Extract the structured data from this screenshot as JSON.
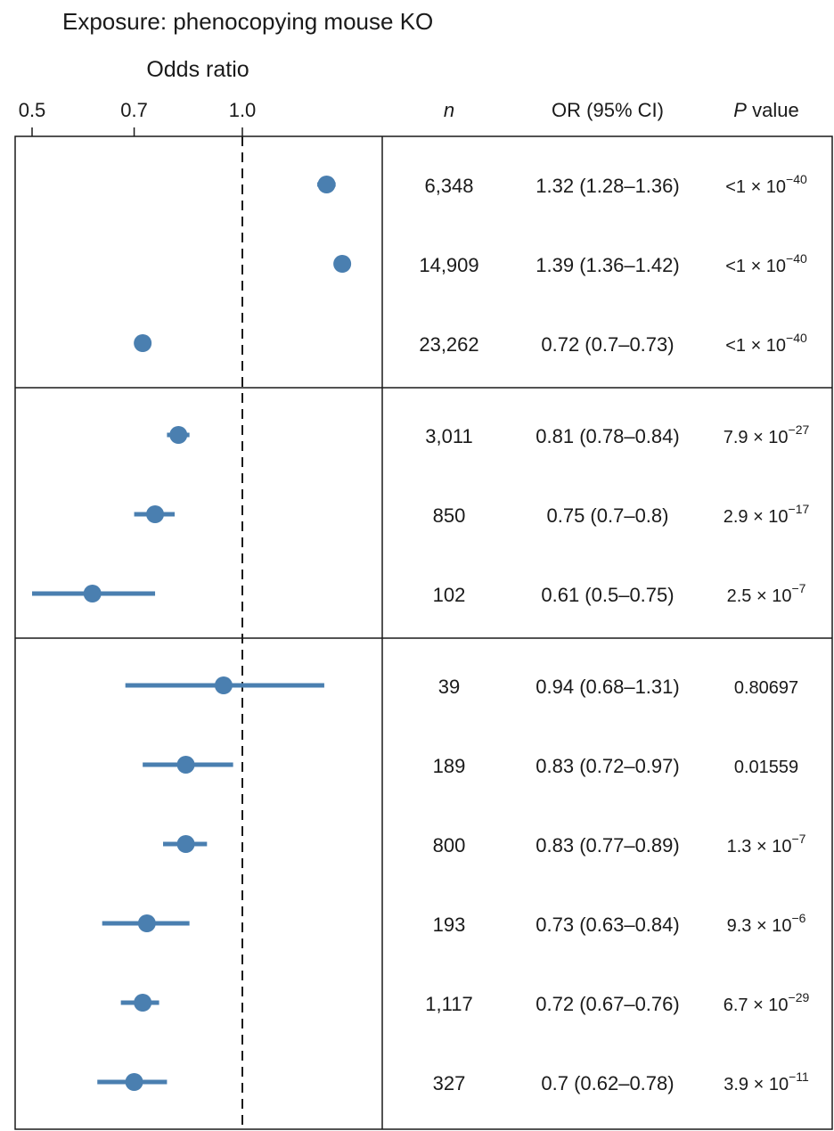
{
  "title": "Exposure: phenocopying mouse KO",
  "axis_label": "Odds ratio",
  "tick_labels": [
    "0.5",
    "0.7",
    "1.0"
  ],
  "columns": {
    "n": "n",
    "or": "OR (95% CI)",
    "p_prefix": "P",
    "p_suffix": " value"
  },
  "colors": {
    "marker": "#4a7fb0",
    "line": "#1a1a1a"
  },
  "chart_data": {
    "type": "forest",
    "xscale": "log",
    "xlim": [
      0.5,
      1.55
    ],
    "reference_line": 1.0,
    "ticks": [
      0.5,
      0.7,
      1.0
    ],
    "xlabel": "Odds ratio",
    "groups": [
      {
        "rows": [
          {
            "n": "6,348",
            "or": 1.32,
            "lo": 1.28,
            "hi": 1.36,
            "or_text": "1.32 (1.28–1.36)",
            "p_base": "<1 × 10",
            "p_exp": "−40"
          },
          {
            "n": "14,909",
            "or": 1.39,
            "lo": 1.36,
            "hi": 1.42,
            "or_text": "1.39 (1.36–1.42)",
            "p_base": "<1 × 10",
            "p_exp": "−40"
          },
          {
            "n": "23,262",
            "or": 0.72,
            "lo": 0.7,
            "hi": 0.73,
            "or_text": "0.72 (0.7–0.73)",
            "p_base": "<1 × 10",
            "p_exp": "−40"
          }
        ]
      },
      {
        "rows": [
          {
            "n": "3,011",
            "or": 0.81,
            "lo": 0.78,
            "hi": 0.84,
            "or_text": "0.81 (0.78–0.84)",
            "p_base": "7.9 × 10",
            "p_exp": "−27"
          },
          {
            "n": "850",
            "or": 0.75,
            "lo": 0.7,
            "hi": 0.8,
            "or_text": "0.75 (0.7–0.8)",
            "p_base": "2.9 × 10",
            "p_exp": "−17"
          },
          {
            "n": "102",
            "or": 0.61,
            "lo": 0.5,
            "hi": 0.75,
            "or_text": "0.61 (0.5–0.75)",
            "p_base": "2.5 × 10",
            "p_exp": "−7"
          }
        ]
      },
      {
        "rows": [
          {
            "n": "39",
            "or": 0.94,
            "lo": 0.68,
            "hi": 1.31,
            "or_text": "0.94 (0.68–1.31)",
            "p_base": "0.80697",
            "p_exp": ""
          },
          {
            "n": "189",
            "or": 0.83,
            "lo": 0.72,
            "hi": 0.97,
            "or_text": "0.83 (0.72–0.97)",
            "p_base": "0.01559",
            "p_exp": ""
          },
          {
            "n": "800",
            "or": 0.83,
            "lo": 0.77,
            "hi": 0.89,
            "or_text": "0.83 (0.77–0.89)",
            "p_base": "1.3 × 10",
            "p_exp": "−7"
          },
          {
            "n": "193",
            "or": 0.73,
            "lo": 0.63,
            "hi": 0.84,
            "or_text": "0.73 (0.63–0.84)",
            "p_base": "9.3 × 10",
            "p_exp": "−6"
          },
          {
            "n": "1,117",
            "or": 0.72,
            "lo": 0.67,
            "hi": 0.76,
            "or_text": "0.72 (0.67–0.76)",
            "p_base": "6.7 × 10",
            "p_exp": "−29"
          },
          {
            "n": "327",
            "or": 0.7,
            "lo": 0.62,
            "hi": 0.78,
            "or_text": "0.7 (0.62–0.78)",
            "p_base": "3.9 × 10",
            "p_exp": "−11"
          }
        ]
      }
    ]
  }
}
